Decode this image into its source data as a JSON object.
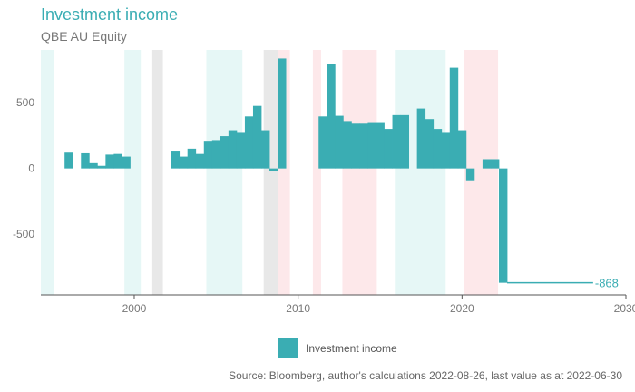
{
  "header": {
    "title": "Investment income",
    "subtitle": "QBE AU Equity"
  },
  "footer": {
    "source": "Source: Bloomberg, author's calculations 2022-08-26, last value as at 2022-06-30"
  },
  "colors": {
    "bar": "#3aadb3",
    "axis": "#555555",
    "tick_label": "#777777",
    "band_teal": "#e6f7f6",
    "band_pink": "#fde8ea",
    "band_grey": "#e8e8e8"
  },
  "chart_data": {
    "type": "bar",
    "title": "Investment income",
    "subtitle": "QBE AU Equity",
    "xlabel": "",
    "ylabel": "",
    "xlim": [
      1994.3,
      2030
    ],
    "ylim": [
      -960,
      900
    ],
    "x_ticks": [
      2000,
      2010,
      2020,
      2030
    ],
    "y_ticks": [
      500,
      0,
      -500
    ],
    "grid": false,
    "legend_position": "bottom-center",
    "last_value_label": "-868",
    "series": [
      {
        "name": "Investment income",
        "points": [
          {
            "x0": 1995.75,
            "x1": 1996.25,
            "value": 120
          },
          {
            "x0": 1996.75,
            "x1": 1997.25,
            "value": 115
          },
          {
            "x0": 1997.25,
            "x1": 1997.75,
            "value": 40
          },
          {
            "x0": 1997.75,
            "x1": 1998.25,
            "value": 20
          },
          {
            "x0": 1998.25,
            "x1": 1998.75,
            "value": 105
          },
          {
            "x0": 1998.75,
            "x1": 1999.25,
            "value": 110
          },
          {
            "x0": 1999.25,
            "x1": 1999.75,
            "value": 90
          },
          {
            "x0": 2002.25,
            "x1": 2002.75,
            "value": 135
          },
          {
            "x0": 2002.75,
            "x1": 2003.25,
            "value": 90
          },
          {
            "x0": 2003.25,
            "x1": 2003.75,
            "value": 150
          },
          {
            "x0": 2003.75,
            "x1": 2004.25,
            "value": 110
          },
          {
            "x0": 2004.25,
            "x1": 2004.75,
            "value": 210
          },
          {
            "x0": 2004.75,
            "x1": 2005.25,
            "value": 215
          },
          {
            "x0": 2005.25,
            "x1": 2005.75,
            "value": 245
          },
          {
            "x0": 2005.75,
            "x1": 2006.25,
            "value": 290
          },
          {
            "x0": 2006.25,
            "x1": 2006.75,
            "value": 270
          },
          {
            "x0": 2006.75,
            "x1": 2007.25,
            "value": 395
          },
          {
            "x0": 2007.25,
            "x1": 2007.75,
            "value": 475
          },
          {
            "x0": 2007.75,
            "x1": 2008.25,
            "value": 290
          },
          {
            "x0": 2008.25,
            "x1": 2008.75,
            "value": -20
          },
          {
            "x0": 2008.75,
            "x1": 2009.25,
            "value": 835
          },
          {
            "x0": 2011.25,
            "x1": 2011.75,
            "value": 395
          },
          {
            "x0": 2011.75,
            "x1": 2012.25,
            "value": 795
          },
          {
            "x0": 2012.25,
            "x1": 2012.75,
            "value": 400
          },
          {
            "x0": 2012.75,
            "x1": 2013.25,
            "value": 360
          },
          {
            "x0": 2013.25,
            "x1": 2013.75,
            "value": 340
          },
          {
            "x0": 2013.75,
            "x1": 2014.25,
            "value": 340
          },
          {
            "x0": 2014.25,
            "x1": 2014.75,
            "value": 345
          },
          {
            "x0": 2014.75,
            "x1": 2015.25,
            "value": 345
          },
          {
            "x0": 2015.25,
            "x1": 2015.75,
            "value": 300
          },
          {
            "x0": 2015.75,
            "x1": 2016.25,
            "value": 405
          },
          {
            "x0": 2016.25,
            "x1": 2016.75,
            "value": 405
          },
          {
            "x0": 2017.25,
            "x1": 2017.75,
            "value": 455
          },
          {
            "x0": 2017.75,
            "x1": 2018.25,
            "value": 375
          },
          {
            "x0": 2018.25,
            "x1": 2018.75,
            "value": 300
          },
          {
            "x0": 2018.75,
            "x1": 2019.25,
            "value": 270
          },
          {
            "x0": 2019.25,
            "x1": 2019.75,
            "value": 765
          },
          {
            "x0": 2019.75,
            "x1": 2020.25,
            "value": 290
          },
          {
            "x0": 2020.25,
            "x1": 2020.75,
            "value": -90
          },
          {
            "x0": 2021.25,
            "x1": 2021.75,
            "value": 70
          },
          {
            "x0": 2021.75,
            "x1": 2022.25,
            "value": 70
          },
          {
            "x0": 2022.25,
            "x1": 2022.75,
            "value": -868
          }
        ]
      }
    ],
    "extension_line": {
      "x0": 2022.75,
      "x1": 2028.0,
      "value": -868
    },
    "shaded_periods": [
      {
        "x0": 1994.3,
        "x1": 1995.1,
        "color": "teal"
      },
      {
        "x0": 1999.4,
        "x1": 2000.4,
        "color": "teal"
      },
      {
        "x0": 2001.1,
        "x1": 2001.75,
        "color": "grey"
      },
      {
        "x0": 2004.4,
        "x1": 2006.6,
        "color": "teal"
      },
      {
        "x0": 2007.9,
        "x1": 2008.8,
        "color": "grey"
      },
      {
        "x0": 2008.8,
        "x1": 2009.5,
        "color": "pink"
      },
      {
        "x0": 2010.9,
        "x1": 2011.4,
        "color": "pink"
      },
      {
        "x0": 2012.7,
        "x1": 2014.8,
        "color": "pink"
      },
      {
        "x0": 2015.9,
        "x1": 2019.0,
        "color": "teal"
      },
      {
        "x0": 2020.1,
        "x1": 2022.2,
        "color": "pink"
      }
    ]
  }
}
